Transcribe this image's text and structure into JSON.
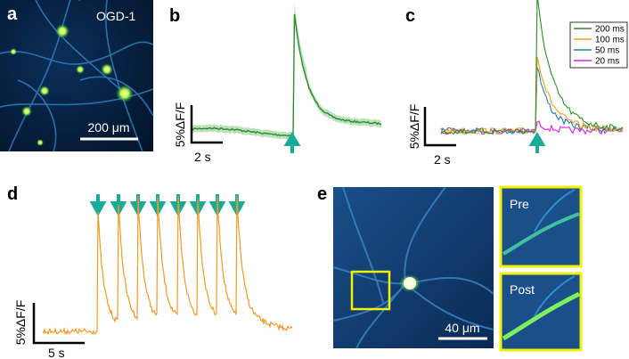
{
  "panels": {
    "a": {
      "label": "a",
      "annotation": "OGD-1",
      "scale_bar": "200 μm"
    },
    "b": {
      "label": "b",
      "y_scale": "5%ΔF/F",
      "x_scale": "2 s"
    },
    "c": {
      "label": "c",
      "y_scale": "5%ΔF/F",
      "x_scale": "2 s",
      "legend": [
        {
          "name": "200 ms",
          "color": "#2e8b2e"
        },
        {
          "name": "100 ms",
          "color": "#f0a020"
        },
        {
          "name": "50 ms",
          "color": "#2a7fa8"
        },
        {
          "name": "20 ms",
          "color": "#e020e0"
        }
      ]
    },
    "d": {
      "label": "d",
      "y_scale": "5%ΔF/F",
      "x_scale": "5 s"
    },
    "e": {
      "label": "e",
      "scale_bar": "40 μm",
      "insets": [
        "Pre",
        "Post"
      ]
    }
  }
}
